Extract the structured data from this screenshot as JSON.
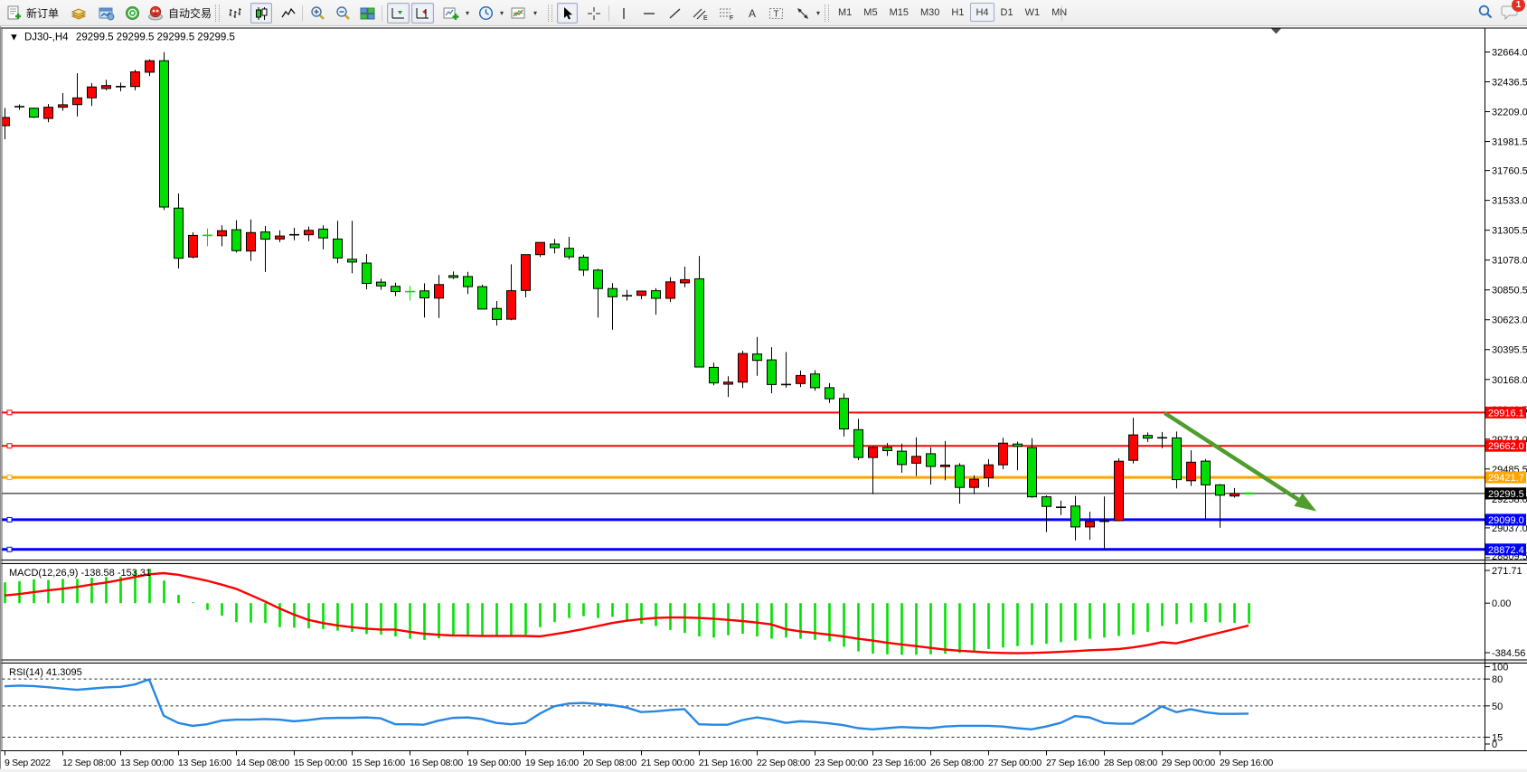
{
  "app": {
    "toolbar": {
      "new_order_label": "新订单",
      "autotrade_label": "自动交易",
      "timeframes": [
        "M1",
        "M5",
        "M15",
        "M30",
        "H1",
        "H4",
        "D1",
        "W1",
        "MN"
      ],
      "active_timeframe": "H4",
      "chart_type_active": "candlestick",
      "notification_badge": "1",
      "icons": [
        "new-order-icon",
        "history-icon",
        "market-watch-icon",
        "signals-icon",
        "autotrading-icon",
        "bar-chart-icon",
        "candlestick-chart-icon",
        "line-chart-icon",
        "zoom-in-icon",
        "zoom-out-icon",
        "tile-windows-icon",
        "auto-scroll-icon",
        "chart-shift-icon",
        "indicators-add-icon",
        "periods-icon",
        "templates-icon",
        "cursor-icon",
        "crosshair-icon",
        "vertical-line-icon",
        "horizontal-line-icon",
        "trendline-icon",
        "equidistant-channel-icon",
        "fibonacci-icon",
        "text-icon",
        "text-label-icon",
        "arrows-icon",
        "search-icon",
        "chat-icon"
      ]
    }
  },
  "chart": {
    "title": {
      "dropdown_glyph": "▼",
      "symbol_period": "DJ30-,H4",
      "ohlc_display": [
        "29299.5",
        "29299.5",
        "29299.5",
        "29299.5"
      ]
    },
    "price_axis_ticks": [
      32664.0,
      32436.5,
      32209.0,
      31981.5,
      31760.5,
      31533.0,
      31305.5,
      31078.0,
      30850.5,
      30623.0,
      30395.5,
      30168.0,
      29940.5,
      29713.0,
      29485.5,
      29258.0,
      29037.0,
      28809.5
    ],
    "time_axis_labels": [
      "9 Sep 2022",
      "12 Sep 08:00",
      "13 Sep 00:00",
      "13 Sep 16:00",
      "14 Sep 08:00",
      "15 Sep 00:00",
      "15 Sep 16:00",
      "16 Sep 08:00",
      "19 Sep 00:00",
      "19 Sep 16:00",
      "20 Sep 08:00",
      "21 Sep 00:00",
      "21 Sep 16:00",
      "22 Sep 08:00",
      "23 Sep 00:00",
      "23 Sep 16:00",
      "26 Sep 08:00",
      "27 Sep 00:00",
      "27 Sep 16:00",
      "28 Sep 08:00",
      "29 Sep 00:00",
      "29 Sep 16:00"
    ],
    "current_price": {
      "value": 29299.5,
      "label": "29299.5"
    }
  },
  "chart_data": {
    "type": "candlestick",
    "symbol": "DJ30-",
    "period": "H4",
    "times": [
      "9 Sep 16:00",
      "9 Sep 20:00",
      "12 Sep 0:00",
      "12 Sep 4:00",
      "12 Sep 8:00",
      "12 Sep 12:00",
      "12 Sep 16:00",
      "12 Sep 20:00",
      "13 Sep 0:00",
      "13 Sep 4:00",
      "13 Sep 8:00",
      "13 Sep 12:00",
      "13 Sep 16:00",
      "13 Sep 20:00",
      "14 Sep 0:00",
      "14 Sep 4:00",
      "14 Sep 8:00",
      "14 Sep 12:00",
      "14 Sep 16:00",
      "14 Sep 20:00",
      "15 Sep 0:00",
      "15 Sep 4:00",
      "15 Sep 8:00",
      "15 Sep 12:00",
      "15 Sep 16:00",
      "15 Sep 20:00",
      "16 Sep 0:00",
      "16 Sep 4:00",
      "16 Sep 8:00",
      "16 Sep 12:00",
      "16 Sep 16:00",
      "16 Sep 20:00",
      "19 Sep 0:00",
      "19 Sep 4:00",
      "19 Sep 8:00",
      "19 Sep 12:00",
      "19 Sep 16:00",
      "19 Sep 20:00",
      "20 Sep 0:00",
      "20 Sep 4:00",
      "20 Sep 8:00",
      "20 Sep 12:00",
      "20 Sep 16:00",
      "20 Sep 20:00",
      "21 Sep 0:00",
      "21 Sep 4:00",
      "21 Sep 8:00",
      "21 Sep 12:00",
      "21 Sep 16:00",
      "21 Sep 20:00",
      "22 Sep 0:00",
      "22 Sep 4:00",
      "22 Sep 8:00",
      "22 Sep 12:00",
      "22 Sep 16:00",
      "22 Sep 20:00",
      "23 Sep 0:00",
      "23 Sep 4:00",
      "23 Sep 8:00",
      "23 Sep 12:00",
      "23 Sep 16:00",
      "23 Sep 20:00",
      "26 Sep 0:00",
      "26 Sep 4:00",
      "26 Sep 8:00",
      "26 Sep 12:00",
      "26 Sep 16:00",
      "26 Sep 20:00",
      "27 Sep 0:00",
      "27 Sep 4:00",
      "27 Sep 8:00",
      "27 Sep 12:00",
      "27 Sep 16:00",
      "27 Sep 20:00",
      "28 Sep 0:00",
      "28 Sep 4:00",
      "28 Sep 8:00",
      "28 Sep 12:00",
      "28 Sep 16:00",
      "28 Sep 20:00",
      "29 Sep 0:00",
      "29 Sep 4:00",
      "29 Sep 8:00",
      "29 Sep 12:00",
      "29 Sep 16:00",
      "29 Sep 20:00",
      "30 Sep 0:00"
    ],
    "open": [
      32102.5,
      32247.2,
      32235.4,
      32157.6,
      32243.0,
      32263.0,
      32314.7,
      32385.6,
      32400.1,
      32400.8,
      32509.7,
      32597.2,
      31474.1,
      31101.3,
      31266.0,
      31263.3,
      31309.4,
      31146.8,
      31292.2,
      31238.5,
      31270.8,
      31270.8,
      31314.2,
      31238.5,
      31084.1,
      31055.2,
      30909.8,
      30878.1,
      30837.5,
      30843.0,
      30787.9,
      30959.4,
      30952.5,
      30875.4,
      30709.3,
      30627.3,
      30846.4,
      31119.3,
      31199.9,
      31167.5,
      31100.0,
      31001.4,
      30860.9,
      30805.8,
      30809.2,
      30844.4,
      30786.5,
      30904.3,
      30935.3,
      30260.1,
      30131.9,
      30147.8,
      30362.1,
      30317.3,
      30129.2,
      30136.7,
      30209.8,
      30105.1,
      30023.8,
      29785.4,
      29573.1,
      29650.3,
      29621.4,
      29529.7,
      29602.1,
      29503.6,
      29512.5,
      29345.1,
      29418.1,
      29517.3,
      29675.8,
      29648.2,
      29273.4,
      29193.5,
      29203.2,
      29044.0,
      29087.4,
      29091.5,
      29551.8,
      29741.3,
      29723.3,
      29722.7,
      29396.1,
      29545.6,
      29364.4,
      29279.6,
      29299.5
    ],
    "high": [
      32236.8,
      32264.4,
      32240.3,
      32267.1,
      32350.5,
      32502.1,
      32427.0,
      32452.5,
      32430.4,
      32529.0,
      32608.2,
      32662.6,
      31585.7,
      31290.1,
      31319.1,
      31343.2,
      31381.8,
      31386.6,
      31338.4,
      31304.6,
      31323.9,
      31333.5,
      31343.2,
      31376.9,
      31376.9,
      31123.4,
      30936.0,
      30905.0,
      30880.9,
      30900.8,
      30964.2,
      30990.4,
      30988.4,
      30890.5,
      30765.8,
      31045.5,
      31119.3,
      31212.3,
      31238.5,
      31255.0,
      31119.3,
      31011.1,
      30902.2,
      30851.2,
      30841.6,
      30863.6,
      30947.7,
      31028.3,
      31109.6,
      30296.6,
      30192.6,
      30386.2,
      30492.3,
      30413.7,
      30377.2,
      30236.0,
      30238.7,
      30139.5,
      30061.6,
      29868.0,
      29657.2,
      29683.4,
      29679.3,
      29727.5,
      29650.3,
      29698.5,
      29529.7,
      29436.7,
      29560.7,
      29723.3,
      29694.4,
      29720.6,
      29284.5,
      29244.5,
      29280.3,
      29159.7,
      29276.2,
      29566.9,
      29876.3,
      29764.0,
      29767.4,
      29770.9,
      29628.3,
      29561.4,
      29371.3,
      29340.3,
      29299.5
    ],
    "low": [
      31999.1,
      32223.0,
      32161.0,
      32128.0,
      32216.2,
      32172.7,
      32252.0,
      32371.9,
      32364.3,
      32371.9,
      32480.7,
      31459.6,
      31013.8,
      31091.7,
      31183.3,
      31183.3,
      31135.1,
      31072.4,
      30987.0,
      31214.3,
      31228.8,
      31222.6,
      31159.2,
      31053.1,
      30977.3,
      30854.7,
      30851.9,
      30803.7,
      30769.2,
      30639.7,
      30637.0,
      30932.5,
      30818.9,
      30702.4,
      30579.1,
      30619.7,
      30793.4,
      31102.7,
      31128.9,
      31083.4,
      30957.3,
      30639.7,
      30546.7,
      30768.6,
      30780.3,
      30661.8,
      30758.9,
      30870.5,
      30259.4,
      30123.7,
      30034.8,
      30103.0,
      30196.0,
      30063.0,
      30105.1,
      30110.6,
      30081.6,
      29988.6,
      29733.0,
      29553.2,
      29294.1,
      29584.9,
      29457.4,
      29432.6,
      29367.1,
      29398.8,
      29221.8,
      29294.1,
      29348.5,
      29483.6,
      29476.7,
      29265.9,
      29004.7,
      29134.9,
      28942.0,
      28946.2,
      28873.8,
      29088.1,
      29527.7,
      29691.7,
      29643.4,
      29337.5,
      29356.1,
      29097.7,
      29037.1,
      29267.2,
      29299.5
    ],
    "close": [
      32164.5,
      32247.2,
      32167.2,
      32243.0,
      32261.6,
      32314.0,
      32397.4,
      32407.7,
      32400.1,
      32512.4,
      32597.2,
      31482.4,
      31091.7,
      31266.0,
      31266.0,
      31301.8,
      31149.6,
      31287.4,
      31237.1,
      31261.2,
      31270.8,
      31304.6,
      31246.7,
      31093.8,
      31062.8,
      30900.2,
      30880.9,
      30837.5,
      30837.5,
      30789.9,
      30891.2,
      30945.6,
      30875.4,
      30704.5,
      30625.2,
      30844.4,
      31119.3,
      31212.3,
      31172.3,
      31102.7,
      31001.4,
      30860.9,
      30798.2,
      30805.8,
      30841.6,
      30786.5,
      30911.9,
      30928.4,
      30262.8,
      30141.6,
      30147.8,
      30365.5,
      30313.1,
      30129.2,
      30129.2,
      30198.1,
      30105.1,
      30021.0,
      29790.9,
      29573.1,
      29650.3,
      29625.5,
      29519.4,
      29582.1,
      29504.9,
      29515.3,
      29345.1,
      29407.8,
      29517.3,
      29682.7,
      29657.9,
      29273.4,
      29200.4,
      29193.5,
      29044.0,
      29084.6,
      29087.4,
      29544.9,
      29745.4,
      29720.6,
      29723.3,
      29404.3,
      29537.3,
      29364.4,
      29285.8,
      29298.9,
      29299.5
    ],
    "candle_color": [
      "r",
      "k",
      "g",
      "r",
      "r",
      "r",
      "r",
      "r",
      "k",
      "r",
      "r",
      "g",
      "g",
      "r",
      "gd",
      "r",
      "g",
      "r",
      "g",
      "r",
      "k",
      "r",
      "g",
      "g",
      "g",
      "g",
      "g",
      "g",
      "gd",
      "g",
      "r",
      "g",
      "g",
      "g",
      "g",
      "r",
      "r",
      "r",
      "g",
      "g",
      "g",
      "g",
      "g",
      "k",
      "r",
      "g",
      "r",
      "r",
      "g",
      "g",
      "r",
      "r",
      "g",
      "g",
      "k",
      "r",
      "g",
      "g",
      "g",
      "g",
      "r",
      "g",
      "g",
      "r",
      "g",
      "r",
      "g",
      "r",
      "r",
      "r",
      "g",
      "g",
      "g",
      "k",
      "g",
      "r",
      "k",
      "r",
      "r",
      "g",
      "k",
      "g",
      "r",
      "g",
      "g",
      "r",
      "gd"
    ],
    "hlines": [
      {
        "price": 29916.1,
        "label": "29916.1",
        "color": "#ff0000",
        "width": 2
      },
      {
        "price": 29662.0,
        "label": "29662.0",
        "color": "#ff0000",
        "width": 2
      },
      {
        "price": 29421.7,
        "label": "29421.7",
        "color": "#ffa500",
        "width": 3
      },
      {
        "price": 29299.5,
        "label": "29299.5",
        "color": "#000000",
        "width": 1
      },
      {
        "price": 29099.0,
        "label": "29099.0",
        "color": "#0000ff",
        "width": 3
      },
      {
        "price": 28872.4,
        "label": "28872.4",
        "color": "#0000ff",
        "width": 3
      }
    ],
    "trend_arrow": {
      "from_bar": 80.2,
      "from_price": 29912.0,
      "to_bar": 90.7,
      "to_price": 29163.0,
      "color": "#4f9d2d"
    },
    "macd": {
      "label": "MACD(12,26,9) -138.58 -153.31",
      "name": "MACD",
      "params": "12,26,9",
      "value_main": -138.58,
      "value_signal": -153.31,
      "axis_ticks": [
        "271.71",
        "0.00",
        "-384.56"
      ],
      "axis_values": [
        271.71,
        0.0,
        -384.56
      ],
      "histogram": [
        142.6,
        150.7,
        163.1,
        158.7,
        166.2,
        166.2,
        174.2,
        179.2,
        182.3,
        223.8,
        236.2,
        155.0,
        56.4,
        5.6,
        -46.5,
        -86.2,
        -130.2,
        -133.3,
        -136.4,
        -164.9,
        -168.0,
        -173.0,
        -177.9,
        -188.5,
        -196.5,
        -212.0,
        -215.1,
        -228.2,
        -244.3,
        -251.7,
        -240.6,
        -215.8,
        -228.2,
        -225.1,
        -225.1,
        -225.1,
        -215.8,
        -164.9,
        -130.2,
        -101.7,
        -89.3,
        -101.7,
        -94.2,
        -117.8,
        -141.4,
        -157.5,
        -184.1,
        -204.6,
        -228.2,
        -236.2,
        -220.1,
        -209.6,
        -228.2,
        -244.3,
        -236.2,
        -244.3,
        -251.7,
        -262.9,
        -299.5,
        -331.1,
        -346.6,
        -351.5,
        -354.6,
        -354.6,
        -351.5,
        -346.6,
        -341.6,
        -331.1,
        -315.0,
        -303.8,
        -294.5,
        -288.3,
        -279.0,
        -267.8,
        -256.7,
        -244.3,
        -236.2,
        -225.1,
        -215.8,
        -196.5,
        -156.9,
        -143.8,
        -132.1,
        -129.0,
        -132.1,
        -135.2,
        -138.58
      ],
      "signal": [
        52.7,
        62.0,
        75.0,
        87.4,
        98.6,
        111.0,
        127.1,
        141.4,
        158.7,
        179.2,
        197.8,
        205.8,
        194.7,
        174.2,
        153.8,
        127.1,
        98.6,
        55.8,
        11.8,
        -36.0,
        -78.1,
        -114.7,
        -136.4,
        -152.5,
        -164.9,
        -174.8,
        -181.0,
        -181.0,
        -196.5,
        -209.6,
        -217.0,
        -222.0,
        -223.2,
        -225.1,
        -225.1,
        -225.1,
        -225.1,
        -228.2,
        -212.7,
        -196.5,
        -177.9,
        -157.5,
        -136.4,
        -120.9,
        -109.7,
        -101.7,
        -98.6,
        -98.6,
        -101.7,
        -106.6,
        -114.7,
        -122.8,
        -133.3,
        -145.7,
        -177.9,
        -193.4,
        -204.6,
        -215.8,
        -228.2,
        -244.3,
        -256.7,
        -270.9,
        -283.3,
        -294.5,
        -306.9,
        -318.1,
        -326.1,
        -332.3,
        -338.5,
        -341.6,
        -343.5,
        -341.6,
        -338.5,
        -334.2,
        -329.2,
        -323.0,
        -319.9,
        -315.0,
        -303.8,
        -288.3,
        -267.8,
        -275.9,
        -251.7,
        -226.9,
        -202.7,
        -178.6,
        -153.31
      ],
      "histogram_color": "#00e000",
      "signal_color": "#ff0000"
    },
    "rsi": {
      "label": "RSI(14) 41.3095",
      "name": "RSI",
      "params": "14",
      "value": 41.3095,
      "axis_ticks": [
        "100",
        "80",
        "50",
        "15",
        "0"
      ],
      "axis_values": [
        100,
        80,
        50,
        15,
        0
      ],
      "levels": [
        80,
        50,
        15
      ],
      "series": [
        71.9,
        72.6,
        72.1,
        70.9,
        69.3,
        68.0,
        69.3,
        70.6,
        71.3,
        73.9,
        79.6,
        39.1,
        31.0,
        27.7,
        29.5,
        33.5,
        34.6,
        34.6,
        35.3,
        34.6,
        32.8,
        34.1,
        36.1,
        36.6,
        36.6,
        37.1,
        36.1,
        29.5,
        29.5,
        29.0,
        33.5,
        36.6,
        37.1,
        35.3,
        31.0,
        29.5,
        31.0,
        41.3,
        49.5,
        52.6,
        53.3,
        52.1,
        50.8,
        48.2,
        43.1,
        43.8,
        45.4,
        46.4,
        29.5,
        29.0,
        29.0,
        34.1,
        37.1,
        34.8,
        31.0,
        32.8,
        32.0,
        30.5,
        28.4,
        25.1,
        23.8,
        25.1,
        26.4,
        25.6,
        25.1,
        26.9,
        27.7,
        27.7,
        27.7,
        26.9,
        25.1,
        23.8,
        26.9,
        31.0,
        38.6,
        37.1,
        31.0,
        30.1,
        30.1,
        39.1,
        49.5,
        43.0,
        46.3,
        43.0,
        41.1,
        41.1,
        41.3095
      ],
      "color": "#2787e2"
    },
    "colors": {
      "up": "#ff0000",
      "down": "#00dd00",
      "outline": "#000000",
      "doji": "#000000",
      "background": "#ffffff",
      "axis_text": "#000000"
    }
  }
}
